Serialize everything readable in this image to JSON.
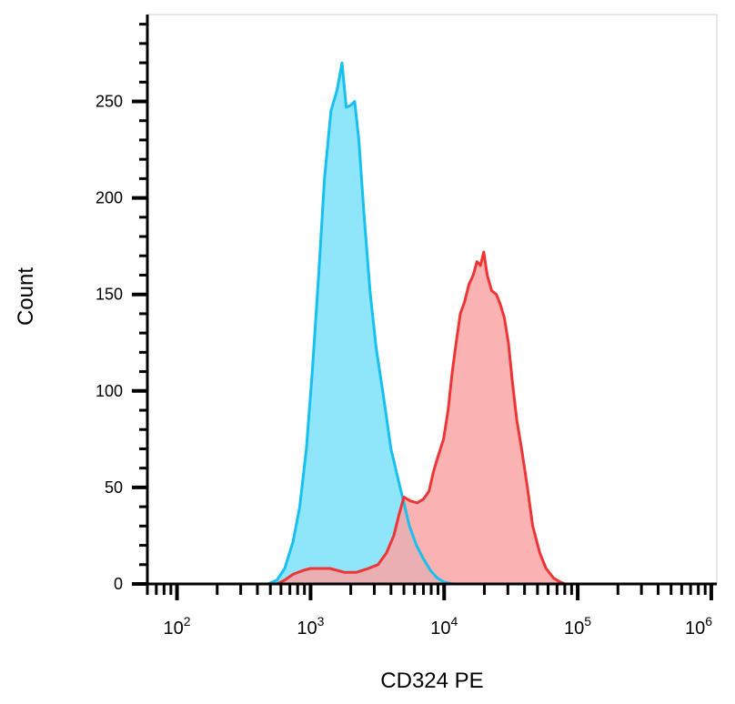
{
  "chart_data": {
    "type": "area",
    "title": "",
    "xlabel": "CD324 PE",
    "ylabel": "Count",
    "xscale": "log",
    "xlim": [
      60,
      1100000
    ],
    "ylim": [
      0,
      295
    ],
    "grid": false,
    "legend": "none",
    "x_ticks": [
      {
        "base": "10",
        "exp": "2",
        "value": 100
      },
      {
        "base": "10",
        "exp": "3",
        "value": 1000
      },
      {
        "base": "10",
        "exp": "4",
        "value": 10000
      },
      {
        "base": "10",
        "exp": "5",
        "value": 100000
      },
      {
        "base": "10",
        "exp": "6",
        "value": 1000000
      }
    ],
    "y_ticks": [
      {
        "label": "0",
        "value": 0
      },
      {
        "label": "50",
        "value": 50
      },
      {
        "label": "100",
        "value": 100
      },
      {
        "label": "150",
        "value": 150
      },
      {
        "label": "200",
        "value": 200
      },
      {
        "label": "250",
        "value": 250
      }
    ],
    "series": [
      {
        "color": "#17c0ee",
        "fill": "#8fe6fb",
        "points": [
          [
            60,
            0
          ],
          [
            480,
            0
          ],
          [
            560,
            2
          ],
          [
            640,
            8
          ],
          [
            740,
            22
          ],
          [
            830,
            40
          ],
          [
            930,
            70
          ],
          [
            1030,
            110
          ],
          [
            1150,
            160
          ],
          [
            1270,
            210
          ],
          [
            1420,
            245
          ],
          [
            1580,
            256
          ],
          [
            1720,
            270
          ],
          [
            1850,
            247
          ],
          [
            2000,
            248
          ],
          [
            2140,
            250
          ],
          [
            2300,
            230
          ],
          [
            2520,
            190
          ],
          [
            2800,
            150
          ],
          [
            3100,
            122
          ],
          [
            3500,
            98
          ],
          [
            4000,
            70
          ],
          [
            4500,
            55
          ],
          [
            5000,
            42
          ],
          [
            5500,
            30
          ],
          [
            6200,
            20
          ],
          [
            7000,
            13
          ],
          [
            7900,
            7
          ],
          [
            8900,
            3
          ],
          [
            10000,
            1
          ],
          [
            11500,
            0
          ],
          [
            1100000,
            0
          ]
        ]
      },
      {
        "color": "#ee3535",
        "fill": "#faa5a5",
        "points": [
          [
            60,
            0
          ],
          [
            560,
            0
          ],
          [
            640,
            2
          ],
          [
            740,
            5
          ],
          [
            880,
            7
          ],
          [
            1000,
            8
          ],
          [
            1400,
            8
          ],
          [
            1800,
            6
          ],
          [
            2200,
            6
          ],
          [
            2700,
            8
          ],
          [
            3200,
            10
          ],
          [
            3700,
            16
          ],
          [
            4200,
            25
          ],
          [
            4600,
            36
          ],
          [
            5000,
            45
          ],
          [
            5600,
            43
          ],
          [
            6300,
            42
          ],
          [
            7000,
            44
          ],
          [
            7700,
            48
          ],
          [
            8300,
            58
          ],
          [
            9000,
            66
          ],
          [
            9900,
            75
          ],
          [
            10700,
            90
          ],
          [
            11500,
            110
          ],
          [
            12300,
            125
          ],
          [
            13200,
            140
          ],
          [
            14200,
            146
          ],
          [
            15300,
            155
          ],
          [
            16500,
            160
          ],
          [
            17600,
            167
          ],
          [
            18700,
            165
          ],
          [
            19800,
            172
          ],
          [
            21000,
            160
          ],
          [
            22700,
            152
          ],
          [
            24600,
            150
          ],
          [
            26300,
            145
          ],
          [
            28200,
            138
          ],
          [
            30300,
            125
          ],
          [
            32400,
            105
          ],
          [
            35000,
            85
          ],
          [
            38000,
            70
          ],
          [
            42000,
            50
          ],
          [
            46000,
            30
          ],
          [
            52000,
            16
          ],
          [
            58000,
            8
          ],
          [
            66000,
            3
          ],
          [
            74000,
            1
          ],
          [
            80000,
            0
          ],
          [
            1100000,
            0
          ]
        ]
      }
    ]
  }
}
